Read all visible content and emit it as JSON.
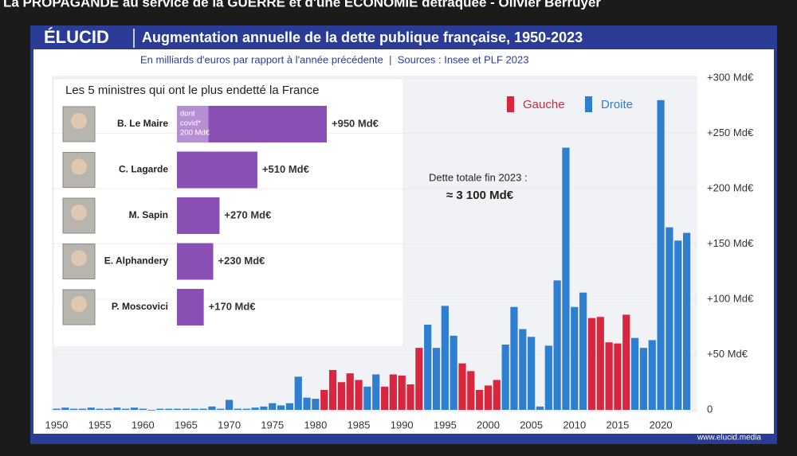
{
  "header": {
    "title": "La PROPAGANDE au service de la GUERRE et d'une ÉCONOMIE détraquée - Olivier Berruyer"
  },
  "chart_data": [
    {
      "type": "bar",
      "logo": "ÉLUCID",
      "title": "Augmentation annuelle de la dette publique française, 1950-2023",
      "subtitle": "En milliards d'euros par rapport à l'année précédente  |  Sources : Insee et PLF 2023",
      "source_url": "www.elucid.media",
      "annotations": [
        "Dette totale fin 2023 :",
        "≈ 3 100 Md€"
      ],
      "x": [
        1950,
        1951,
        1952,
        1953,
        1954,
        1955,
        1956,
        1957,
        1958,
        1959,
        1960,
        1961,
        1962,
        1963,
        1964,
        1965,
        1966,
        1967,
        1968,
        1969,
        1970,
        1971,
        1972,
        1973,
        1974,
        1975,
        1976,
        1977,
        1978,
        1979,
        1980,
        1981,
        1982,
        1983,
        1984,
        1985,
        1986,
        1987,
        1988,
        1989,
        1990,
        1991,
        1992,
        1993,
        1994,
        1995,
        1996,
        1997,
        1998,
        1999,
        2000,
        2001,
        2002,
        2003,
        2004,
        2005,
        2006,
        2007,
        2008,
        2009,
        2010,
        2011,
        2012,
        2013,
        2014,
        2015,
        2016,
        2017,
        2018,
        2019,
        2020,
        2021,
        2022,
        2023
      ],
      "series": [
        {
          "name": "Gauche",
          "color": "#d7263d",
          "values": [
            null,
            null,
            null,
            null,
            null,
            null,
            null,
            null,
            null,
            null,
            null,
            null,
            null,
            null,
            null,
            null,
            null,
            null,
            null,
            null,
            null,
            null,
            null,
            null,
            null,
            null,
            null,
            null,
            null,
            null,
            null,
            18,
            36,
            25,
            33,
            27,
            null,
            null,
            21,
            32,
            31,
            23,
            56,
            null,
            null,
            null,
            null,
            42,
            35,
            18,
            22,
            27,
            null,
            null,
            null,
            null,
            null,
            null,
            null,
            null,
            null,
            null,
            83,
            84,
            61,
            60,
            86,
            null,
            null,
            null,
            null,
            null,
            null,
            null
          ]
        },
        {
          "name": "Droite",
          "color": "#2f7fd1",
          "values": [
            1,
            2,
            1,
            1,
            2,
            1,
            1,
            2,
            1,
            2,
            1,
            0,
            1,
            1,
            1,
            1,
            1,
            1,
            3,
            1,
            9,
            1,
            1,
            2,
            3,
            6,
            4,
            6,
            30,
            11,
            10,
            null,
            null,
            null,
            null,
            null,
            21,
            32,
            null,
            null,
            null,
            null,
            null,
            77,
            56,
            94,
            67,
            null,
            null,
            null,
            null,
            null,
            59,
            93,
            73,
            66,
            3,
            58,
            117,
            237,
            93,
            106,
            null,
            null,
            null,
            null,
            null,
            65,
            56,
            63,
            280,
            165,
            153,
            160
          ]
        }
      ],
      "xticks": [
        1950,
        1955,
        1960,
        1965,
        1970,
        1975,
        1980,
        1985,
        1990,
        1995,
        2000,
        2005,
        2010,
        2015,
        2020
      ],
      "ylim": [
        0,
        300
      ],
      "yticks": [
        0,
        {
          "value": 50,
          "label": "+50 Md€"
        },
        {
          "value": 100,
          "label": "+100 Md€"
        },
        {
          "value": 150,
          "label": "+150 Md€"
        },
        {
          "value": 200,
          "label": "+200 Md€"
        },
        {
          "value": 250,
          "label": "+250 Md€"
        },
        {
          "value": 300,
          "label": "+300 Md€"
        }
      ]
    },
    {
      "type": "barh",
      "title": "Les 5 ministres qui ont le plus endetté la France",
      "categories": [
        "B. Le Maire",
        "C. Lagarde",
        "M. Sapin",
        "E. Alphandery",
        "P. Moscovici"
      ],
      "values": [
        950,
        510,
        270,
        230,
        170
      ],
      "value_labels": [
        "+950 Md€",
        "+510 Md€",
        "+270 Md€",
        "+230 Md€",
        "+170 Md€"
      ],
      "color": "#8a4fb5",
      "covid": {
        "value": 200,
        "label": [
          "dont",
          "covid*",
          "200 Md€"
        ]
      }
    }
  ]
}
